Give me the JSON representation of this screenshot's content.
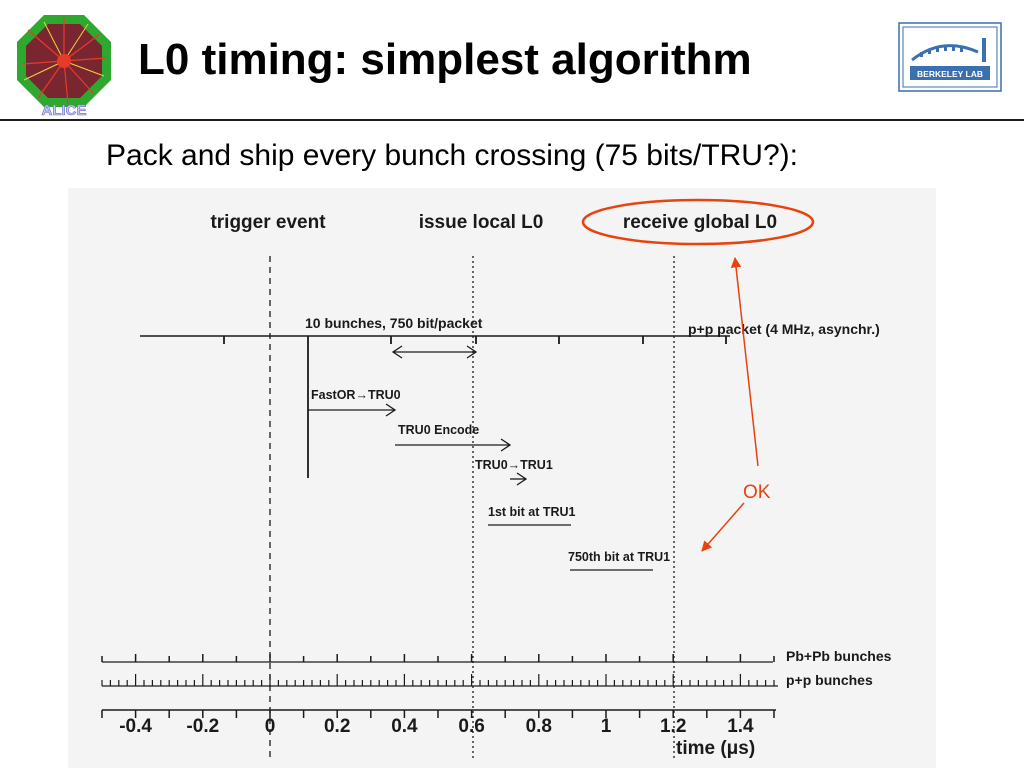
{
  "title": "L0 timing: simplest algorithm",
  "subtitle": "Pack and ship every bunch crossing (75 bits/TRU?):",
  "logos": {
    "left": {
      "text": "ALICE",
      "colors": [
        "#ff2f1a",
        "#2e9c2e",
        "#1b4fb0"
      ]
    },
    "right": {
      "text": "BERKELEY LAB",
      "color": "#3a6fb0"
    }
  },
  "diagram": {
    "headers": {
      "trigger": "trigger event",
      "local": "issue local L0",
      "global": "receive global L0"
    },
    "packet_label": "10 bunches, 750 bit/packet",
    "pp_packet_label": "p+p packet (4 MHz, asynchr.)",
    "steps": {
      "fastor": "FastOR→TRU0",
      "encode": "TRU0 Encode",
      "tru_transfer": "TRU0→TRU1",
      "first_bit": "1st bit at TRU1",
      "last_bit": "750th bit at TRU1"
    },
    "ok_label": "OK",
    "bunch_labels": {
      "pbpb": "Pb+Pb bunches",
      "pp": "p+p bunches"
    },
    "axis_title": "time (μs)",
    "ticks": [
      "-0.4",
      "-0.2",
      "0",
      "0.2",
      "0.4",
      "0.6",
      "0.8",
      "1",
      "1.2",
      "1.4"
    ],
    "colors": {
      "highlight": "#e8420f",
      "ink": "#1a1a1a",
      "background": "#f4f4f4"
    }
  }
}
